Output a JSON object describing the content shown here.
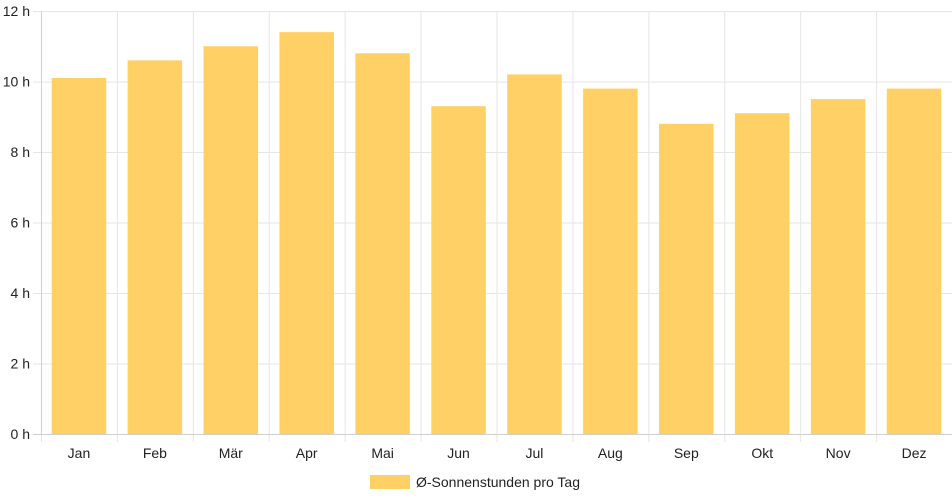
{
  "chart_data": {
    "type": "bar",
    "categories": [
      "Jan",
      "Feb",
      "Mär",
      "Apr",
      "Mai",
      "Jun",
      "Jul",
      "Aug",
      "Sep",
      "Okt",
      "Nov",
      "Dez"
    ],
    "series": [
      {
        "name": "Ø-Sonnenstunden pro Tag",
        "values": [
          10.1,
          10.6,
          11.0,
          11.4,
          10.8,
          9.3,
          10.2,
          9.8,
          8.8,
          9.1,
          9.5,
          9.8
        ],
        "color": "#fed066"
      }
    ],
    "y_ticks": [
      "0 h",
      "2 h",
      "4 h",
      "6 h",
      "8 h",
      "10 h",
      "12 h"
    ],
    "ylim": [
      0,
      12
    ],
    "grid": true,
    "legend_position": "bottom"
  }
}
